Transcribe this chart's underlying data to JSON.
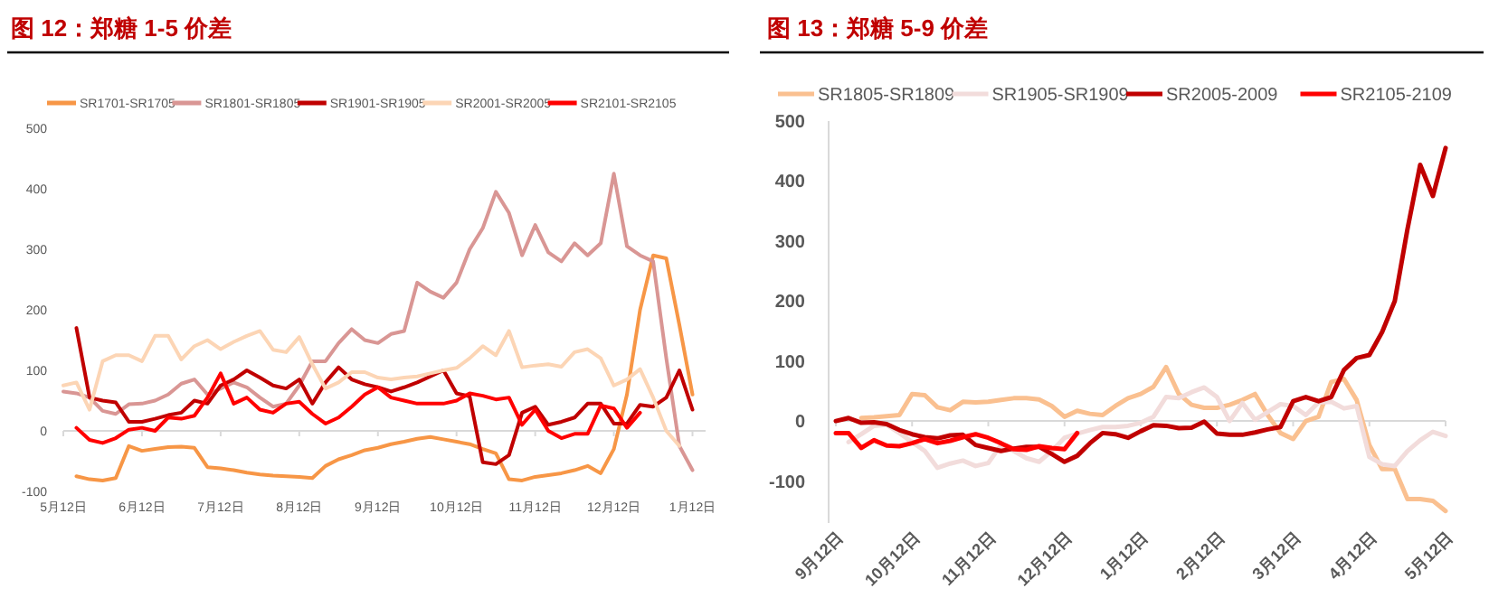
{
  "chart_data": [
    {
      "type": "line",
      "title": "图 12：郑糖 1-5 价差",
      "legend": "top",
      "ylim": [
        -100,
        500
      ],
      "categories": [
        "5月12日",
        null,
        null,
        null,
        null,
        null,
        "6月12日",
        null,
        null,
        null,
        null,
        null,
        "7月12日",
        null,
        null,
        null,
        null,
        null,
        "8月12日",
        null,
        null,
        null,
        null,
        null,
        "9月12日",
        null,
        null,
        null,
        null,
        null,
        "10月12日",
        null,
        null,
        null,
        null,
        null,
        "11月12日",
        null,
        null,
        null,
        null,
        null,
        "12月12日",
        null,
        null,
        null,
        null,
        null,
        "1月12日",
        null
      ],
      "yticks": [
        -100,
        0,
        100,
        200,
        300,
        400,
        500
      ],
      "series": [
        {
          "name": "SR1701-SR1705",
          "color": "#f79646",
          "values": [
            null,
            -75,
            -80,
            -82,
            -78,
            -25,
            -33,
            -30,
            -27,
            -26,
            -28,
            -60,
            -62,
            -65,
            -69,
            -72,
            -74,
            -75,
            -76,
            -78,
            -58,
            -47,
            -40,
            -32,
            -28,
            -22,
            -18,
            -13,
            -10,
            -14,
            -18,
            -22,
            -30,
            -37,
            -80,
            -82,
            -76,
            -73,
            -70,
            -65,
            -58,
            -70,
            -30,
            60,
            200,
            290,
            285,
            175,
            60,
            null
          ]
        },
        {
          "name": "SR1801-SR1805",
          "color": "#d99694",
          "values": [
            65,
            62,
            55,
            33,
            28,
            44,
            45,
            50,
            60,
            78,
            85,
            60,
            70,
            80,
            72,
            55,
            40,
            45,
            75,
            115,
            115,
            145,
            168,
            150,
            145,
            160,
            165,
            245,
            230,
            220,
            245,
            300,
            335,
            395,
            360,
            290,
            340,
            295,
            280,
            310,
            290,
            310,
            425,
            305,
            290,
            280,
            120,
            -25,
            -65,
            null
          ]
        },
        {
          "name": "SR1901-SR1905",
          "color": "#c00000",
          "values": [
            null,
            170,
            55,
            50,
            47,
            15,
            15,
            20,
            26,
            30,
            50,
            45,
            75,
            85,
            100,
            88,
            75,
            70,
            85,
            45,
            80,
            105,
            85,
            77,
            72,
            65,
            72,
            80,
            90,
            100,
            62,
            57,
            -52,
            -55,
            -40,
            30,
            40,
            10,
            15,
            22,
            45,
            45,
            12,
            12,
            43,
            40,
            55,
            100,
            35,
            null
          ]
        },
        {
          "name": "SR2001-SR2005",
          "color": "#fcd5b5",
          "values": [
            75,
            80,
            35,
            115,
            125,
            125,
            115,
            157,
            157,
            118,
            140,
            150,
            135,
            147,
            157,
            165,
            134,
            130,
            155,
            110,
            70,
            80,
            97,
            97,
            88,
            85,
            88,
            90,
            95,
            100,
            104,
            120,
            140,
            125,
            165,
            105,
            108,
            110,
            106,
            130,
            135,
            120,
            75,
            85,
            102,
            55,
            0,
            -25,
            null,
            null
          ]
        },
        {
          "name": "SR2101-SR2105",
          "color": "#ff0000",
          "values": [
            null,
            5,
            -15,
            -20,
            -12,
            2,
            5,
            0,
            22,
            20,
            25,
            55,
            95,
            45,
            55,
            35,
            30,
            45,
            48,
            28,
            12,
            22,
            40,
            60,
            72,
            55,
            50,
            45,
            45,
            45,
            50,
            62,
            58,
            52,
            55,
            10,
            35,
            0,
            -12,
            -5,
            -5,
            42,
            37,
            5,
            30,
            null,
            null,
            null,
            null,
            null
          ]
        }
      ]
    },
    {
      "type": "line",
      "title": "图 13：郑糖 5-9 价差",
      "legend": "top",
      "ylim": [
        -170,
        500
      ],
      "categories": [
        "9月12日",
        null,
        null,
        null,
        null,
        null,
        "10月12日",
        null,
        null,
        null,
        null,
        null,
        "11月12日",
        null,
        null,
        null,
        null,
        null,
        "12月12日",
        null,
        null,
        null,
        null,
        null,
        "1月12日",
        null,
        null,
        null,
        null,
        null,
        "2月12日",
        null,
        null,
        null,
        null,
        null,
        "3月12日",
        null,
        null,
        null,
        null,
        null,
        "4月12日",
        null,
        null,
        null,
        null,
        null,
        "5月12日"
      ],
      "yticks": [
        -100,
        0,
        100,
        200,
        300,
        400,
        500
      ],
      "series": [
        {
          "name": "SR1805-SR1809",
          "color": "#fac090",
          "values": [
            null,
            null,
            5,
            6,
            8,
            10,
            45,
            43,
            23,
            18,
            32,
            31,
            32,
            35,
            38,
            38,
            36,
            25,
            7,
            17,
            12,
            10,
            25,
            38,
            45,
            57,
            90,
            45,
            27,
            22,
            22,
            27,
            35,
            45,
            10,
            -20,
            -30,
            0,
            7,
            65,
            70,
            35,
            -40,
            -80,
            -80,
            -130,
            -130,
            -133,
            -150
          ]
        },
        {
          "name": "SR1905-SR1909",
          "color": "#f2dcdb",
          "values": [
            null,
            -35,
            -22,
            -8,
            -6,
            -20,
            -35,
            -50,
            -78,
            -71,
            -66,
            -75,
            -70,
            -40,
            -50,
            -62,
            -68,
            -50,
            -28,
            -21,
            -15,
            -10,
            -10,
            -8,
            -3,
            7,
            40,
            38,
            48,
            56,
            40,
            0,
            30,
            2,
            15,
            28,
            25,
            10,
            31,
            32,
            21,
            25,
            -60,
            -72,
            -75,
            -50,
            -32,
            -18,
            -25
          ]
        },
        {
          "name": "SR2005-2009",
          "color": "#c00000",
          "values": [
            0,
            5,
            -3,
            -2,
            -5,
            -15,
            -22,
            -27,
            -29,
            -24,
            -23,
            -40,
            -45,
            -50,
            -46,
            -43,
            -43,
            -55,
            -68,
            -58,
            -37,
            -20,
            -22,
            -28,
            -17,
            -7,
            -8,
            -12,
            -11,
            -1,
            -21,
            -23,
            -23,
            -19,
            -14,
            -10,
            33,
            40,
            33,
            40,
            85,
            105,
            110,
            148,
            200,
            320,
            427,
            375,
            455
          ]
        },
        {
          "name": "SR2105-2109",
          "color": "#ff0000",
          "values": [
            -20,
            -20,
            -45,
            -32,
            -41,
            -42,
            -37,
            -30,
            -37,
            -33,
            -27,
            -22,
            -28,
            -37,
            -47,
            -48,
            -42,
            -45,
            -47,
            -20,
            null,
            null,
            null,
            null,
            null,
            null,
            null,
            null,
            null,
            null,
            null,
            null,
            null,
            null,
            null,
            null,
            null,
            null,
            null,
            null,
            null,
            null,
            null,
            null,
            null,
            null,
            null,
            null,
            null
          ]
        }
      ]
    }
  ]
}
